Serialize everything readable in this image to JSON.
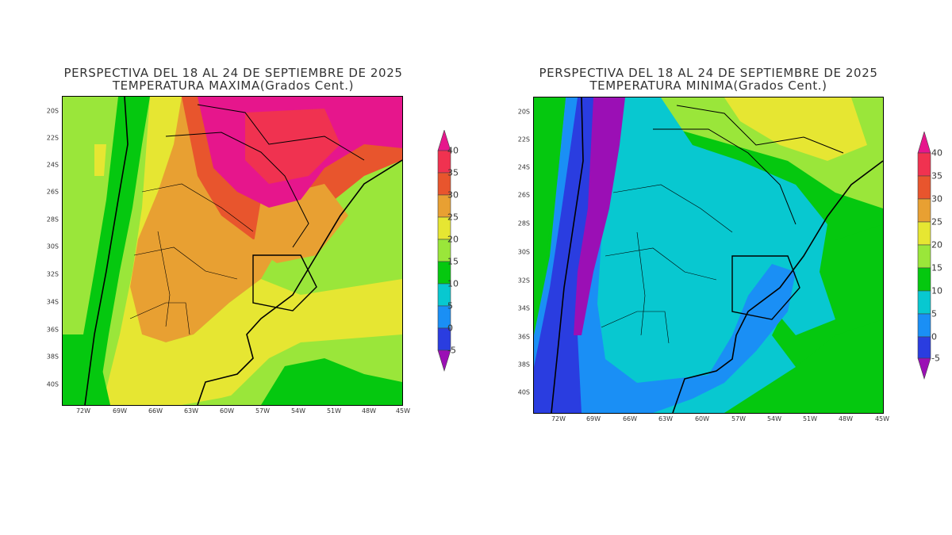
{
  "colorbar": {
    "levels": [
      "-5",
      "0",
      "5",
      "10",
      "15",
      "20",
      "25",
      "30",
      "35",
      "40"
    ],
    "colors": {
      "below_-5": "#9b0fb5",
      "-5_0": "#2a3de0",
      "0_5": "#1a8ff5",
      "5_10": "#08c8d0",
      "10_15": "#05c80f",
      "15_20": "#9ae63a",
      "20_25": "#e6e632",
      "25_30": "#e8a032",
      "30_35": "#e8552d",
      "35_40": "#f03250",
      "above_40": "#e6168c"
    }
  },
  "axes": {
    "lat_labels": [
      "20S",
      "22S",
      "24S",
      "26S",
      "28S",
      "30S",
      "32S",
      "34S",
      "36S",
      "38S",
      "40S"
    ],
    "lon_labels": [
      "72W",
      "69W",
      "66W",
      "63W",
      "60W",
      "57W",
      "54W",
      "51W",
      "48W",
      "45W"
    ]
  },
  "maps": [
    {
      "title_line1": "PERSPECTIVA DEL 18 AL 24 DE SEPTIEMBRE DE 2025",
      "title_line2": "TEMPERATURA MAXIMA(Grados Cent.)",
      "variable": "max"
    },
    {
      "title_line1": "PERSPECTIVA DEL 18 AL 24 DE SEPTIEMBRE DE 2025",
      "title_line2": "TEMPERATURA MINIMA(Grados Cent.)",
      "variable": "min"
    }
  ]
}
